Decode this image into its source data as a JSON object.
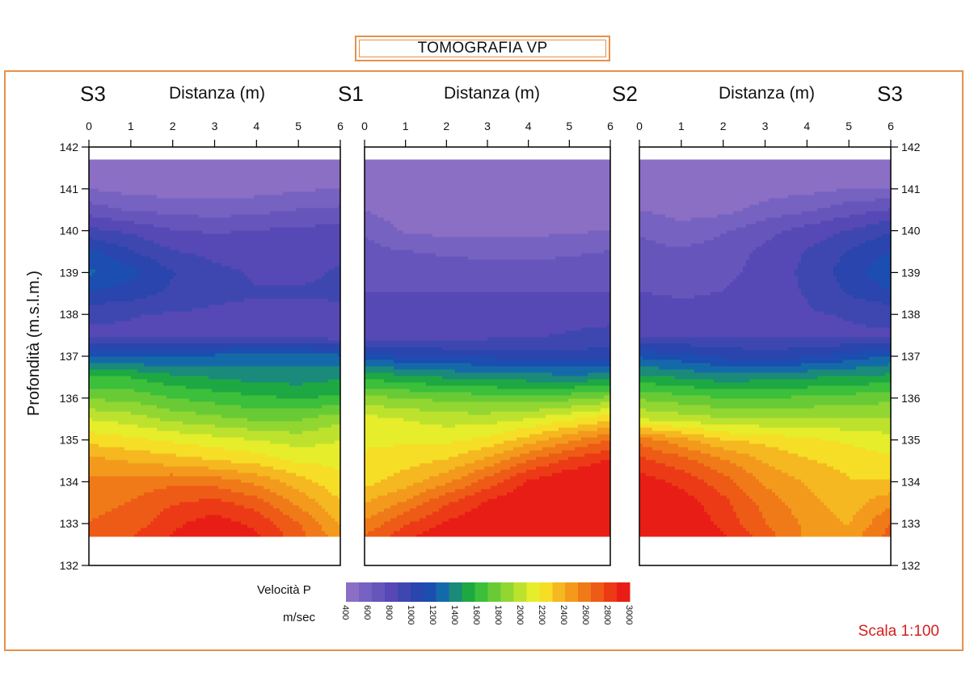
{
  "title": "TOMOGRAFIA VP",
  "stations": [
    "S3",
    "S1",
    "S2",
    "S3"
  ],
  "distance_label": "Distanza (m)",
  "depth_label": "Profondità (m.s.l.m.)",
  "legend": {
    "title": "Velocità P",
    "unit": "m/sec",
    "ticks": [
      "400",
      "600",
      "800",
      "1000",
      "1200",
      "1400",
      "1600",
      "1800",
      "2000",
      "2200",
      "2400",
      "2600",
      "2800",
      "3000"
    ],
    "colors": [
      "#8a6fc4",
      "#7662c0",
      "#6655bb",
      "#5648b5",
      "#3e47b0",
      "#2a45ad",
      "#1c4db0",
      "#146aa8",
      "#1a8a7a",
      "#1ea843",
      "#3cbf3a",
      "#68cb36",
      "#92d632",
      "#bde22e",
      "#e6ed2a",
      "#f6de26",
      "#f5b820",
      "#f39a1c",
      "#f07a18",
      "#ee5b16",
      "#ec3a16",
      "#e81e16"
    ]
  },
  "scale": "Scala 1:100",
  "chart_data": {
    "type": "heatmap",
    "title": "TOMOGRAFIA VP",
    "xlabel": "Distanza (m)",
    "ylabel": "Profondità (m.s.l.m.)",
    "xlim": [
      0,
      6
    ],
    "ylim": [
      132,
      142
    ],
    "x_ticks": [
      "0",
      "1",
      "2",
      "3",
      "4",
      "5",
      "6"
    ],
    "y_ticks": [
      "142",
      "141",
      "140",
      "139",
      "138",
      "137",
      "136",
      "135",
      "134",
      "133",
      "132"
    ],
    "value_unit": "m/sec",
    "data_extent": {
      "depth_top": 141.7,
      "depth_bottom": 132.7
    },
    "panels": [
      {
        "name": "S3-S1",
        "left_station": "S3",
        "right_station": "S1",
        "x": [
          0,
          1,
          2,
          3,
          4,
          5,
          6
        ],
        "depth": [
          141.7,
          141,
          140.5,
          140,
          139.5,
          139,
          138.5,
          138,
          137.5,
          137,
          136.5,
          136,
          135.5,
          135,
          134.5,
          134,
          133.5,
          133,
          132.7
        ],
        "values": [
          [
            450,
            440,
            430,
            430,
            430,
            440,
            450
          ],
          [
            520,
            470,
            460,
            460,
            470,
            500,
            520
          ],
          [
            700,
            620,
            600,
            580,
            600,
            640,
            660
          ],
          [
            900,
            850,
            760,
            740,
            760,
            780,
            800
          ],
          [
            1150,
            1000,
            880,
            840,
            820,
            840,
            860
          ],
          [
            1250,
            1150,
            1000,
            900,
            860,
            860,
            880
          ],
          [
            1100,
            1050,
            960,
            900,
            880,
            880,
            880
          ],
          [
            900,
            880,
            860,
            850,
            840,
            850,
            860
          ],
          [
            850,
            850,
            850,
            850,
            840,
            820,
            780
          ],
          [
            1200,
            1200,
            1200,
            1250,
            1280,
            1300,
            1250
          ],
          [
            1600,
            1580,
            1500,
            1450,
            1420,
            1400,
            1450
          ],
          [
            1800,
            1780,
            1700,
            1650,
            1600,
            1580,
            1600
          ],
          [
            2050,
            2000,
            1900,
            1850,
            1800,
            1800,
            1900
          ],
          [
            2250,
            2200,
            2150,
            2100,
            2050,
            2000,
            2050
          ],
          [
            2450,
            2400,
            2350,
            2300,
            2250,
            2150,
            2150
          ],
          [
            2550,
            2580,
            2620,
            2600,
            2500,
            2350,
            2200
          ],
          [
            2600,
            2650,
            2750,
            2800,
            2700,
            2500,
            2300
          ],
          [
            2650,
            2700,
            2850,
            2950,
            2850,
            2650,
            2400
          ],
          [
            2650,
            2750,
            2900,
            3000,
            2900,
            2700,
            2450
          ]
        ]
      },
      {
        "name": "S1-S2",
        "left_station": "S1",
        "right_station": "S2",
        "x": [
          0,
          1,
          2,
          3,
          4,
          5,
          6
        ],
        "depth": [
          141.7,
          141,
          140.5,
          140,
          139.5,
          139,
          138.5,
          138,
          137.5,
          137,
          136.5,
          136,
          135.5,
          135,
          134.5,
          134,
          133.5,
          133,
          132.7
        ],
        "values": [
          [
            430,
            430,
            430,
            430,
            430,
            430,
            480
          ],
          [
            440,
            430,
            430,
            430,
            430,
            430,
            520
          ],
          [
            520,
            440,
            440,
            440,
            440,
            450,
            480
          ],
          [
            620,
            500,
            480,
            480,
            480,
            500,
            520
          ],
          [
            680,
            640,
            620,
            600,
            600,
            620,
            640
          ],
          [
            720,
            700,
            700,
            690,
            680,
            690,
            700
          ],
          [
            760,
            760,
            760,
            760,
            760,
            760,
            760
          ],
          [
            800,
            820,
            830,
            840,
            840,
            840,
            840
          ],
          [
            760,
            780,
            800,
            830,
            860,
            880,
            900
          ],
          [
            1150,
            1120,
            1100,
            1080,
            1060,
            1050,
            1050
          ],
          [
            1550,
            1500,
            1450,
            1420,
            1400,
            1380,
            1400
          ],
          [
            1850,
            1820,
            1780,
            1760,
            1750,
            1780,
            1850
          ],
          [
            2100,
            2050,
            2000,
            2000,
            2050,
            2150,
            2250
          ],
          [
            2150,
            2150,
            2150,
            2200,
            2350,
            2500,
            2650
          ],
          [
            2200,
            2250,
            2300,
            2450,
            2650,
            2800,
            2900
          ],
          [
            2250,
            2350,
            2500,
            2700,
            2900,
            3000,
            3000
          ],
          [
            2400,
            2550,
            2750,
            2900,
            3000,
            3000,
            3000
          ],
          [
            2550,
            2750,
            2900,
            3000,
            3000,
            3000,
            3000
          ],
          [
            2650,
            2850,
            3000,
            3000,
            3000,
            3000,
            3000
          ]
        ]
      },
      {
        "name": "S2-S3",
        "left_station": "S2",
        "right_station": "S3",
        "x": [
          0,
          1,
          2,
          3,
          4,
          5,
          6
        ],
        "depth": [
          141.7,
          141,
          140.5,
          140,
          139.5,
          139,
          138.5,
          138,
          137.5,
          137,
          136.5,
          136,
          135.5,
          135,
          134.5,
          134,
          133.5,
          133,
          132.7
        ],
        "values": [
          [
            450,
            440,
            430,
            440,
            470,
            480,
            470
          ],
          [
            470,
            450,
            440,
            460,
            480,
            520,
            520
          ],
          [
            520,
            470,
            480,
            560,
            620,
            700,
            760
          ],
          [
            620,
            560,
            620,
            720,
            800,
            880,
            980
          ],
          [
            680,
            650,
            700,
            780,
            880,
            1000,
            1120
          ],
          [
            720,
            700,
            720,
            800,
            900,
            1050,
            1200
          ],
          [
            760,
            740,
            760,
            820,
            880,
            1000,
            1100
          ],
          [
            820,
            800,
            800,
            830,
            860,
            880,
            900
          ],
          [
            860,
            860,
            860,
            860,
            860,
            860,
            860
          ],
          [
            1200,
            1150,
            1080,
            1050,
            1080,
            1150,
            1250
          ],
          [
            1500,
            1450,
            1400,
            1420,
            1450,
            1480,
            1500
          ],
          [
            1800,
            1750,
            1700,
            1700,
            1720,
            1750,
            1780
          ],
          [
            2050,
            2000,
            1950,
            1950,
            1950,
            1950,
            1950
          ],
          [
            2600,
            2450,
            2300,
            2250,
            2200,
            2150,
            2100
          ],
          [
            2800,
            2700,
            2550,
            2400,
            2300,
            2250,
            2200
          ],
          [
            2950,
            2850,
            2700,
            2500,
            2400,
            2300,
            2300
          ],
          [
            3000,
            2950,
            2800,
            2600,
            2450,
            2350,
            2500
          ],
          [
            3000,
            3000,
            2850,
            2650,
            2500,
            2400,
            2650
          ],
          [
            3000,
            3000,
            2900,
            2700,
            2500,
            2450,
            2700
          ]
        ]
      }
    ]
  }
}
